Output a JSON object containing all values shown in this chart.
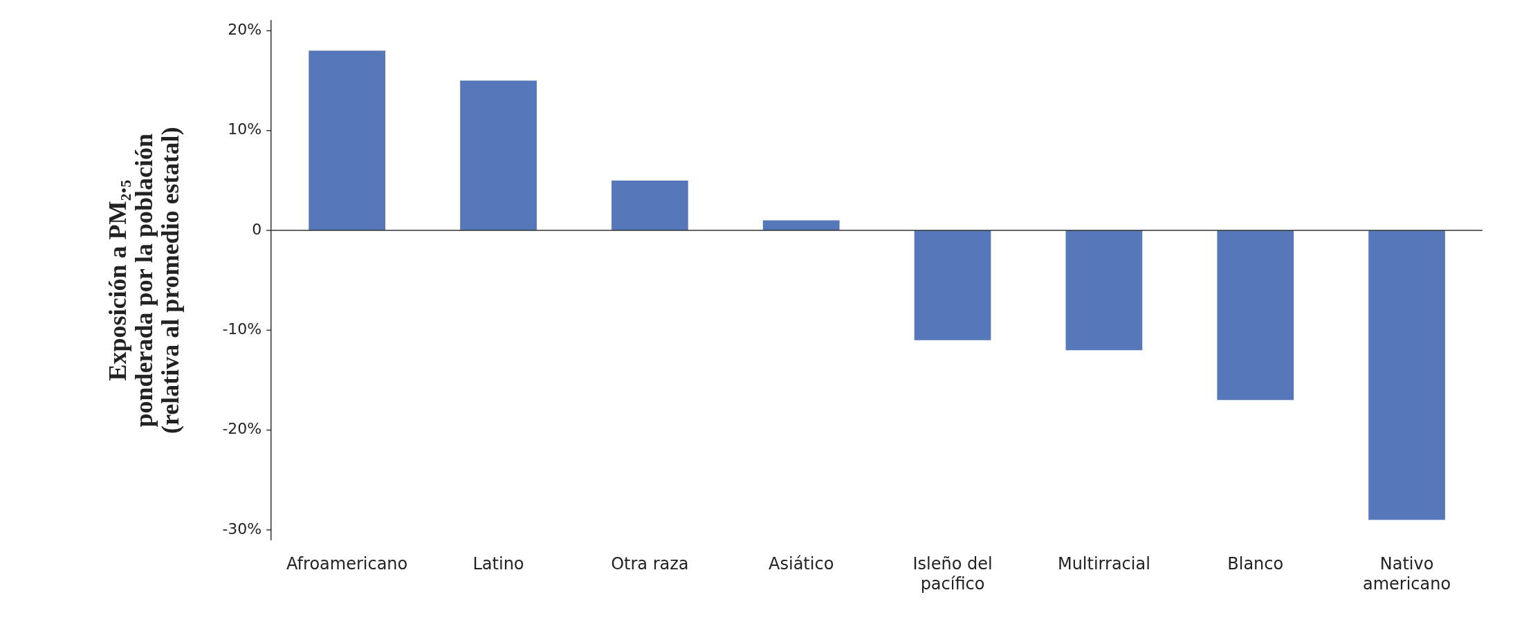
{
  "chart_data": {
    "type": "bar",
    "ylabel": "Exposición a PM₂.₅\nponderada por la población\n(relativa al promedio estatal)",
    "categories": [
      "Afroamericano",
      "Latino",
      "Otra raza",
      "Asiático",
      "Isleño del pacífico",
      "Multirracial",
      "Blanco",
      "Nativo americano"
    ],
    "values": [
      18,
      15,
      5,
      1,
      -11,
      -12,
      -17,
      -29
    ],
    "color": "#5677b9",
    "ylim": [
      -31,
      21
    ],
    "yticks": [
      {
        "value": 20,
        "label": "20%"
      },
      {
        "value": 10,
        "label": "10%"
      },
      0,
      {
        "value": -10,
        "label": "-10%"
      },
      {
        "value": -20,
        "label": "-20%"
      },
      {
        "value": -30,
        "label": "-30%"
      }
    ],
    "ref_lines": [
      {
        "axis": "y",
        "value": 0,
        "color": "#333333"
      }
    ],
    "grid": false,
    "legend": false
  }
}
